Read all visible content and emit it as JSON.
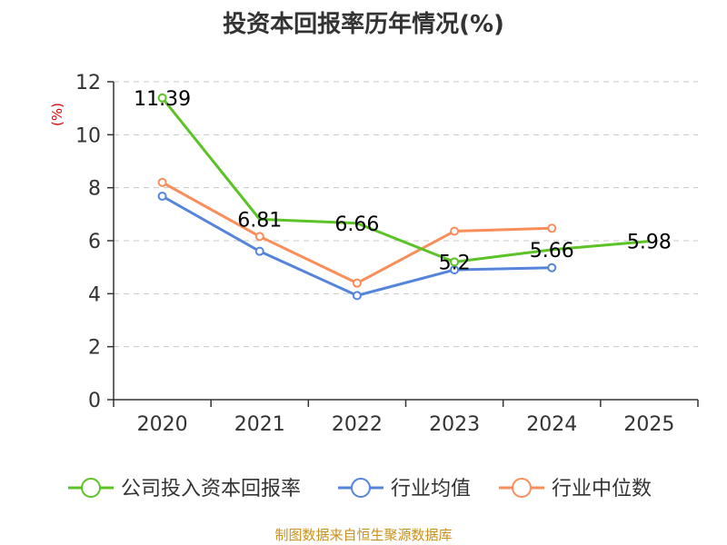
{
  "chart_data": {
    "type": "line",
    "title": "投资本回报率历年情况(%)",
    "ylabel": "(%)",
    "xlabel": "",
    "categories": [
      "2020",
      "2021",
      "2022",
      "2023",
      "2024",
      "2025"
    ],
    "ylim": [
      0,
      12
    ],
    "yticks": [
      0,
      2,
      4,
      6,
      8,
      10,
      12
    ],
    "grid": true,
    "legend_position": "bottom",
    "series": [
      {
        "name": "公司投入资本回报率",
        "color": "#5cc326",
        "values": [
          11.39,
          6.81,
          6.66,
          5.2,
          5.66,
          5.98
        ],
        "data_labels": [
          "11.39",
          "6.81",
          "6.66",
          "5.2",
          "5.66",
          "5.98"
        ],
        "show_markers": [
          true,
          false,
          false,
          true,
          false,
          false
        ]
      },
      {
        "name": "行业均值",
        "color": "#5584db",
        "values": [
          7.68,
          5.6,
          3.93,
          4.9,
          4.98,
          null
        ],
        "show_markers": [
          true,
          true,
          true,
          true,
          true,
          false
        ]
      },
      {
        "name": "行业中位数",
        "color": "#f98e5a",
        "values": [
          8.2,
          6.16,
          4.4,
          6.36,
          6.47,
          null
        ],
        "show_markers": [
          true,
          true,
          true,
          true,
          true,
          false
        ]
      }
    ]
  },
  "footer": {
    "source": "制图数据来自恒生聚源数据库"
  }
}
